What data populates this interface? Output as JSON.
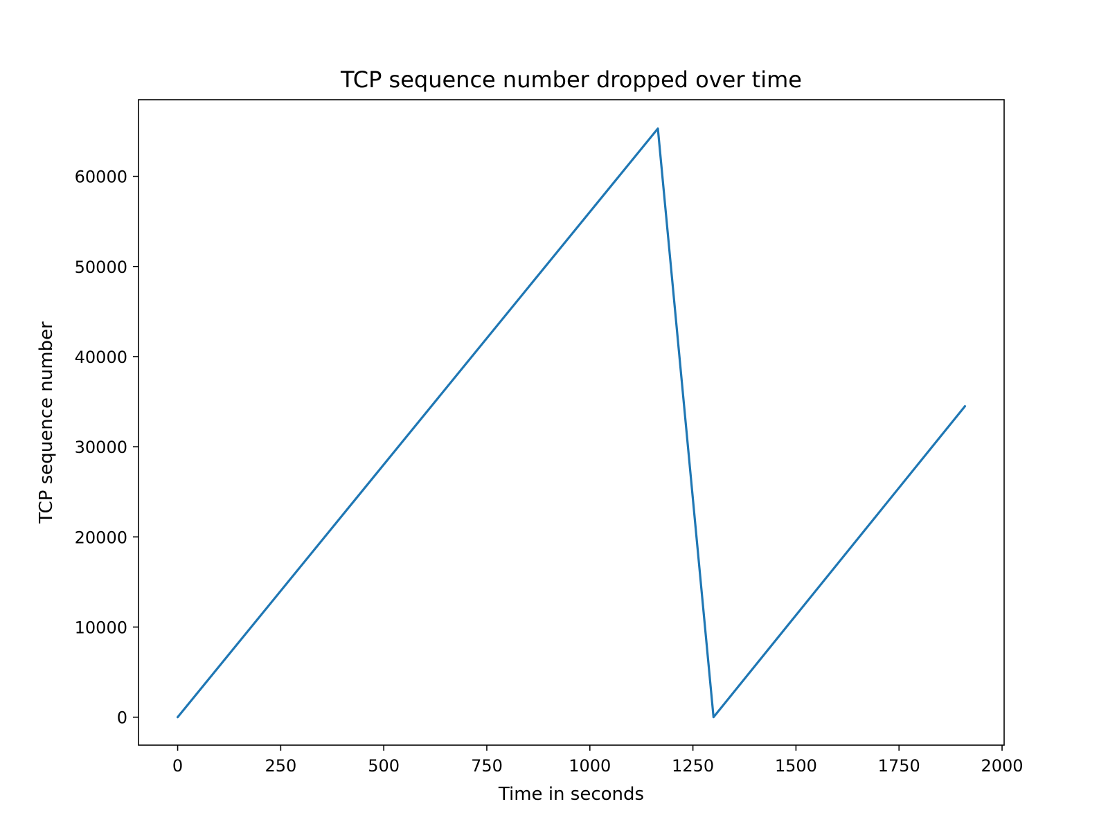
{
  "chart_data": {
    "type": "line",
    "title": "TCP sequence number dropped over time",
    "xlabel": "Time in seconds",
    "ylabel": "TCP sequence number",
    "xlim": [
      -95,
      2005
    ],
    "ylim": [
      -3100,
      68500
    ],
    "xticks": [
      0,
      250,
      500,
      750,
      1000,
      1250,
      1500,
      1750,
      2000
    ],
    "xtick_labels": [
      "0",
      "250",
      "500",
      "750",
      "1000",
      "1250",
      "1500",
      "1750",
      "2000"
    ],
    "yticks": [
      0,
      10000,
      20000,
      30000,
      40000,
      50000,
      60000
    ],
    "ytick_labels": [
      "0",
      "10000",
      "20000",
      "30000",
      "40000",
      "50000",
      "60000"
    ],
    "grid": false,
    "legend": "none",
    "series": [
      {
        "color": "#1f77b4",
        "x": [
          0,
          1165,
          1165,
          1300,
          1300,
          1910
        ],
        "y": [
          0,
          65300,
          65300,
          0,
          0,
          34500
        ]
      }
    ]
  }
}
